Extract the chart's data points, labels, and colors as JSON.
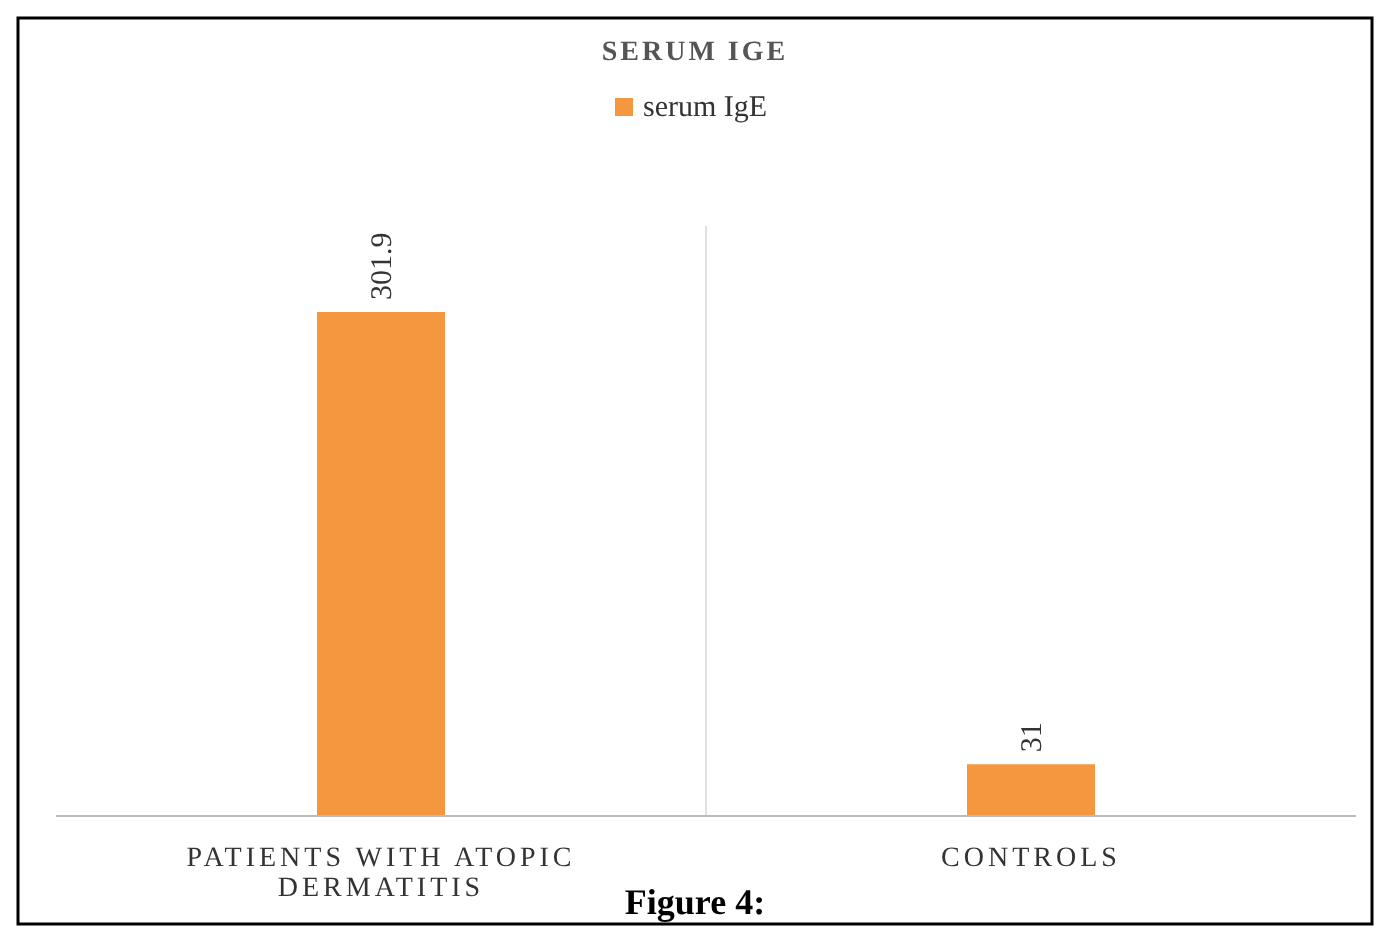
{
  "chart_data": {
    "type": "bar",
    "title": "SERUM IGE",
    "categories": [
      "PATIENTS WITH ATOPIC DERMATITIS",
      "CONTROLS"
    ],
    "series": [
      {
        "name": "serum IgE",
        "color": "#f4973f",
        "values": [
          301.9,
          31
        ]
      }
    ],
    "data_labels": true,
    "legend": "top",
    "grid": false,
    "annotations": [
      "Figure 4:"
    ]
  }
}
